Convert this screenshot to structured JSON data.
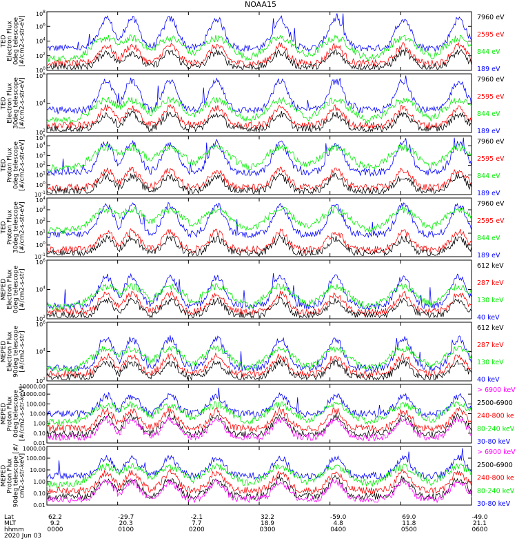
{
  "title": "NOAA15",
  "colors": {
    "blue": "#0000ff",
    "red": "#ff0000",
    "green": "#00ee00",
    "black": "#000000",
    "magenta": "#ff00ff"
  },
  "x_axis": {
    "rows": [
      {
        "label": "Lat",
        "values": [
          "62.2",
          "-29.7",
          "-2.1",
          "32.2",
          "-59.0",
          "69.0",
          "-49.0"
        ]
      },
      {
        "label": "MLT",
        "values": [
          "9.2",
          "20.3",
          "7.7",
          "18.9",
          "4.8",
          "11.8",
          "21.1"
        ]
      },
      {
        "label": "hhmm",
        "values": [
          "0000",
          "0100",
          "0200",
          "0300",
          "0400",
          "0500",
          "0600"
        ]
      }
    ],
    "date": "2020 Jun 03"
  },
  "chart_data": [
    {
      "type": "line",
      "panel": "ted-electron-0deg",
      "ylabel": [
        "TED",
        "Electron Flux",
        "0deg telescope",
        "[#/cm2-s-str-eV]"
      ],
      "yscale": "log",
      "ytick_labels": [
        "10^0",
        "10^2",
        "10^4",
        "10^6",
        "10^8"
      ],
      "series": [
        {
          "name": "7960 eV",
          "color": "black"
        },
        {
          "name": "2595 eV",
          "color": "red"
        },
        {
          "name": "844 eV",
          "color": "green"
        },
        {
          "name": "189 eV",
          "color": "blue"
        }
      ]
    },
    {
      "type": "line",
      "panel": "ted-electron-30deg",
      "ylabel": [
        "TED",
        "Electron Flux",
        "30deg telescope",
        "[#/cm2-s-str-eV]"
      ],
      "yscale": "log",
      "ytick_labels": [
        "10^2",
        "10^4",
        "10^6"
      ],
      "series": [
        {
          "name": "7960 eV",
          "color": "black"
        },
        {
          "name": "2595 eV",
          "color": "red"
        },
        {
          "name": "844 eV",
          "color": "green"
        },
        {
          "name": "189 eV",
          "color": "blue"
        }
      ]
    },
    {
      "type": "line",
      "panel": "ted-proton-0deg",
      "ylabel": [
        "TED",
        "Proton Flux",
        "0deg telescope",
        "[#/cm2-s-str-eV]"
      ],
      "yscale": "log",
      "ytick_labels": [
        "10^-1",
        "10^0",
        "10^1",
        "10^2",
        "10^3",
        "10^4",
        "10^5"
      ],
      "series": [
        {
          "name": "7960 eV",
          "color": "black"
        },
        {
          "name": "2595 eV",
          "color": "red"
        },
        {
          "name": "844 eV",
          "color": "green"
        },
        {
          "name": "189 eV",
          "color": "blue"
        }
      ]
    },
    {
      "type": "line",
      "panel": "ted-proton-30deg",
      "ylabel": [
        "TED",
        "Proton Flux",
        "30deg telescope",
        "[#/cm2-s-str-eV]"
      ],
      "yscale": "log",
      "ytick_labels": [
        "10^-1",
        "10^0",
        "10^1",
        "10^2",
        "10^3",
        "10^4"
      ],
      "series": [
        {
          "name": "7960 eV",
          "color": "black"
        },
        {
          "name": "2595 eV",
          "color": "red"
        },
        {
          "name": "844 eV",
          "color": "green"
        },
        {
          "name": "189 eV",
          "color": "blue"
        }
      ]
    },
    {
      "type": "line",
      "panel": "meped-electron-0deg",
      "ylabel": [
        "MEPED",
        "Electron Flux",
        "0deg telescope",
        "[#/cm2-s-str]"
      ],
      "yscale": "log",
      "ytick_labels": [
        "10^2",
        "10^4",
        "10^6"
      ],
      "series": [
        {
          "name": "612 keV",
          "color": "black"
        },
        {
          "name": "287 keV",
          "color": "red"
        },
        {
          "name": "130 keV",
          "color": "green"
        },
        {
          "name": "40 keV",
          "color": "blue"
        }
      ]
    },
    {
      "type": "line",
      "panel": "meped-electron-90deg",
      "ylabel": [
        "MEPED",
        "Electron Flux",
        "90deg telescope",
        "[#/cm2-s-str]"
      ],
      "yscale": "log",
      "ytick_labels": [
        "10^2",
        "10^4",
        "10^6"
      ],
      "series": [
        {
          "name": "612 keV",
          "color": "black"
        },
        {
          "name": "287 keV",
          "color": "red"
        },
        {
          "name": "130 keV",
          "color": "green"
        },
        {
          "name": "40 keV",
          "color": "blue"
        }
      ]
    },
    {
      "type": "line",
      "panel": "meped-proton-0deg",
      "ylabel": [
        "MEPED",
        "Proton Flux",
        "0deg telescope",
        "[#/cm2-s-str-keV]"
      ],
      "yscale": "log",
      "ytick_labels": [
        "0.01",
        "0.10",
        "1.00",
        "10.00",
        "100.00",
        "1000.00",
        "10000.00"
      ],
      "series": [
        {
          "name": "> 6900 keV",
          "color": "magenta"
        },
        {
          "name": "2500-6900",
          "color": "black"
        },
        {
          "name": "240-800 ke",
          "color": "red"
        },
        {
          "name": "80-240 keV",
          "color": "green"
        },
        {
          "name": "30-80 keV",
          "color": "blue"
        }
      ]
    },
    {
      "type": "line",
      "panel": "meped-proton-90deg",
      "ylabel": [
        "MEPED",
        "Proton Flux",
        "90deg telescope [#/",
        "cm2-s-str-keV]"
      ],
      "yscale": "log",
      "ytick_labels": [
        "0.01",
        "0.10",
        "1.00",
        "10.00",
        "100.00",
        "1000.00"
      ],
      "series": [
        {
          "name": "> 6900 keV",
          "color": "magenta"
        },
        {
          "name": "2500-6900",
          "color": "black"
        },
        {
          "name": "240-800 ke",
          "color": "red"
        },
        {
          "name": "80-240 keV",
          "color": "green"
        },
        {
          "name": "30-80 keV",
          "color": "blue"
        }
      ]
    }
  ]
}
